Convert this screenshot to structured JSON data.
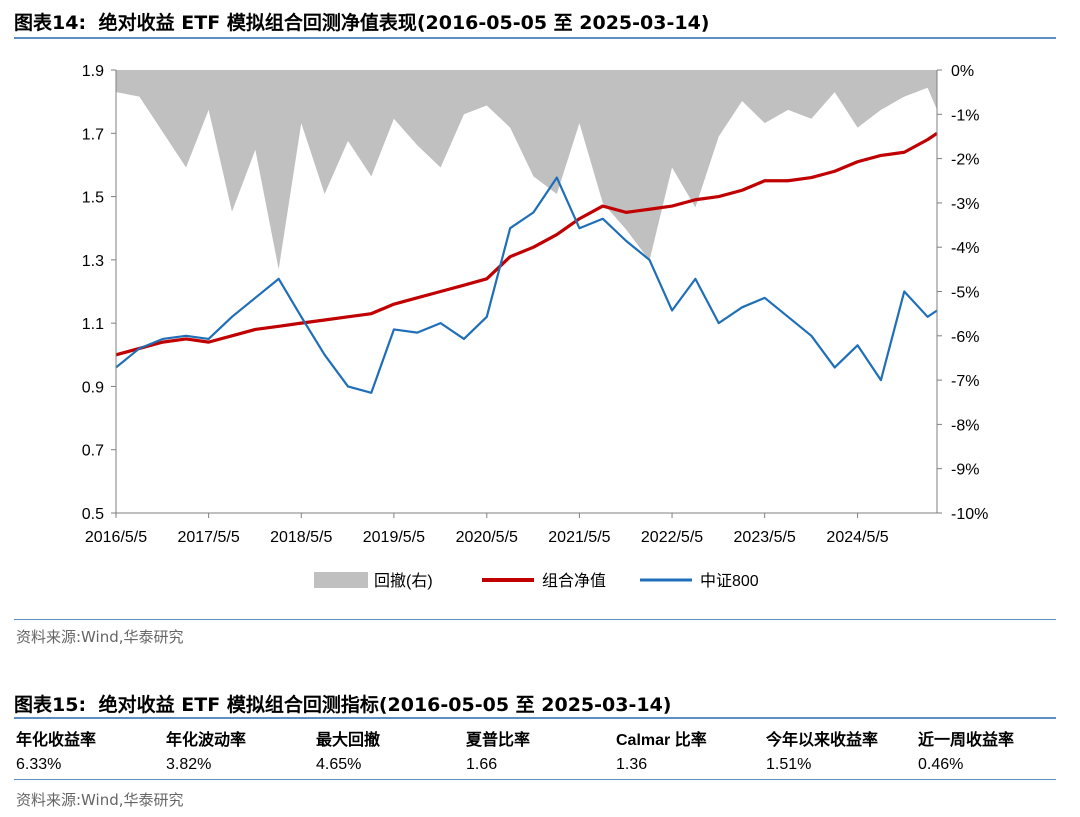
{
  "figure14": {
    "label": "图表14:",
    "title": "绝对收益 ETF 模拟组合回测净值表现(2016-05-05 至 2025-03-14)",
    "source": "资料来源:Wind,华泰研究"
  },
  "figure15": {
    "label": "图表15:",
    "title": "绝对收益 ETF 模拟组合回测指标(2016-05-05 至 2025-03-14)",
    "source": "资料来源:Wind,华泰研究",
    "headers": [
      "年化收益率",
      "年化波动率",
      "最大回撤",
      "夏普比率",
      "Calmar 比率",
      "今年以来收益率",
      "近一周收益率"
    ],
    "values": [
      "6.33%",
      "3.82%",
      "4.65%",
      "1.66",
      "1.36",
      "1.51%",
      "0.46%"
    ]
  },
  "chart_data": {
    "type": "line",
    "x_ticks": [
      "2016/5/5",
      "2017/5/5",
      "2018/5/5",
      "2019/5/5",
      "2020/5/5",
      "2021/5/5",
      "2022/5/5",
      "2023/5/5",
      "2024/5/5"
    ],
    "y_left": {
      "min": 0.5,
      "max": 1.9,
      "ticks": [
        "0.5",
        "0.7",
        "0.9",
        "1.1",
        "1.3",
        "1.5",
        "1.7",
        "1.9"
      ]
    },
    "y_right": {
      "min": -10,
      "max": 0,
      "ticks": [
        "0%",
        "-1%",
        "-2%",
        "-3%",
        "-4%",
        "-5%",
        "-6%",
        "-7%",
        "-8%",
        "-9%",
        "-10%"
      ]
    },
    "legend": [
      "回撤(右)",
      "组合净值",
      "中证800"
    ],
    "colors": {
      "drawdown": "#c0c0c0",
      "portfolio": "#c00000",
      "csi800": "#1f6fb8"
    },
    "x": [
      "2016/5/5",
      "2016/8/5",
      "2016/11/5",
      "2017/2/5",
      "2017/5/5",
      "2017/8/5",
      "2017/11/5",
      "2018/2/5",
      "2018/5/5",
      "2018/8/5",
      "2018/11/5",
      "2019/2/5",
      "2019/5/5",
      "2019/8/5",
      "2019/11/5",
      "2020/2/5",
      "2020/5/5",
      "2020/8/5",
      "2020/11/5",
      "2021/2/5",
      "2021/5/5",
      "2021/8/5",
      "2021/11/5",
      "2022/2/5",
      "2022/5/5",
      "2022/8/5",
      "2022/11/5",
      "2023/2/5",
      "2023/5/5",
      "2023/8/5",
      "2023/11/5",
      "2024/2/5",
      "2024/5/5",
      "2024/8/5",
      "2024/11/5",
      "2025/2/5",
      "2025/3/14"
    ],
    "series": [
      {
        "name": "组合净值",
        "axis": "left",
        "values": [
          1.0,
          1.02,
          1.04,
          1.05,
          1.04,
          1.06,
          1.08,
          1.09,
          1.1,
          1.11,
          1.12,
          1.13,
          1.16,
          1.18,
          1.2,
          1.22,
          1.24,
          1.31,
          1.34,
          1.38,
          1.43,
          1.47,
          1.45,
          1.46,
          1.47,
          1.49,
          1.5,
          1.52,
          1.55,
          1.55,
          1.56,
          1.58,
          1.61,
          1.63,
          1.64,
          1.68,
          1.7
        ]
      },
      {
        "name": "中证800",
        "axis": "left",
        "values": [
          0.96,
          1.02,
          1.05,
          1.06,
          1.05,
          1.12,
          1.18,
          1.24,
          1.12,
          1.0,
          0.9,
          0.88,
          1.08,
          1.07,
          1.1,
          1.05,
          1.12,
          1.4,
          1.45,
          1.56,
          1.4,
          1.43,
          1.36,
          1.3,
          1.14,
          1.24,
          1.1,
          1.15,
          1.18,
          1.12,
          1.06,
          0.96,
          1.03,
          0.92,
          1.2,
          1.12,
          1.14
        ]
      },
      {
        "name": "回撤(右)",
        "axis": "right",
        "values": [
          -0.5,
          -0.6,
          -1.4,
          -2.2,
          -0.9,
          -3.2,
          -1.8,
          -4.5,
          -1.2,
          -2.8,
          -1.6,
          -2.4,
          -1.1,
          -1.7,
          -2.2,
          -1.0,
          -0.8,
          -1.3,
          -2.4,
          -2.8,
          -1.2,
          -3.0,
          -3.6,
          -4.3,
          -2.2,
          -3.1,
          -1.5,
          -0.7,
          -1.2,
          -0.9,
          -1.1,
          -0.5,
          -1.3,
          -0.9,
          -0.6,
          -0.4,
          -0.9
        ]
      }
    ]
  }
}
